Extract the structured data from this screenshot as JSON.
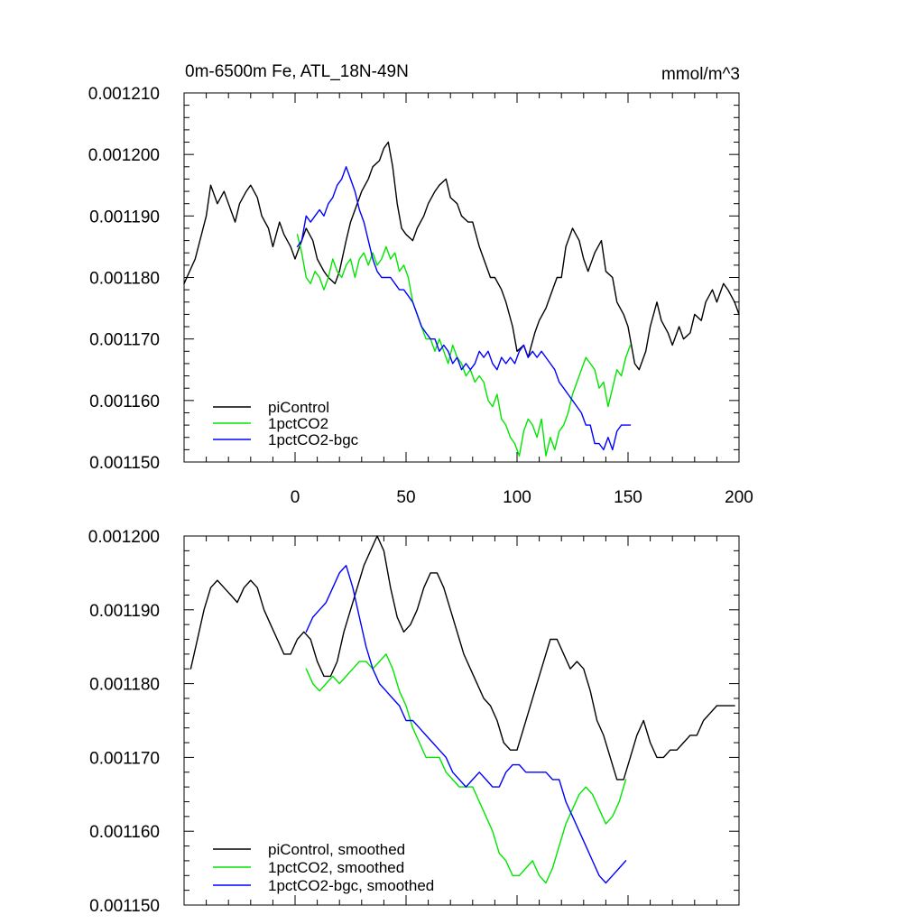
{
  "chart_data": [
    {
      "type": "line",
      "title_left": "0m-6500m Fe, ATL_18N-49N",
      "title_right": "mmol/m^3",
      "xlim": [
        -50,
        200
      ],
      "ylim": [
        0.00115,
        0.00121
      ],
      "x_ticks": [
        0,
        50,
        100,
        150,
        200
      ],
      "x_tick_labels": [
        "0",
        "50",
        "100",
        "150",
        "200"
      ],
      "y_ticks": [
        0.00115,
        0.00116,
        0.00117,
        0.00118,
        0.00119,
        0.0012,
        0.00121
      ],
      "y_tick_labels": [
        "0.001150",
        "0.001160",
        "0.001170",
        "0.001180",
        "0.001190",
        "0.001200",
        "0.001210"
      ],
      "legend_position": "bottom-left",
      "series": [
        {
          "name": "piControl",
          "color": "#000000",
          "x": [
            -50,
            -45,
            -40,
            -38,
            -35,
            -32,
            -30,
            -27,
            -25,
            -22,
            -20,
            -17,
            -15,
            -12,
            -10,
            -7,
            -5,
            -2,
            0,
            3,
            5,
            8,
            10,
            13,
            15,
            18,
            20,
            23,
            25,
            28,
            30,
            33,
            35,
            38,
            40,
            42,
            44,
            46,
            48,
            50,
            53,
            55,
            58,
            60,
            63,
            65,
            68,
            70,
            73,
            75,
            78,
            80,
            83,
            85,
            88,
            90,
            93,
            95,
            98,
            100,
            103,
            105,
            108,
            110,
            113,
            115,
            118,
            120,
            122,
            125,
            128,
            130,
            132,
            135,
            138,
            140,
            143,
            145,
            148,
            150,
            153,
            155,
            158,
            160,
            163,
            165,
            168,
            170,
            173,
            175,
            178,
            180,
            183,
            185,
            188,
            190,
            193,
            195,
            198,
            200
          ],
          "values": [
            0.001179,
            0.001183,
            0.00119,
            0.001195,
            0.001192,
            0.001194,
            0.001192,
            0.001189,
            0.001192,
            0.001194,
            0.001195,
            0.001193,
            0.00119,
            0.001188,
            0.001185,
            0.001189,
            0.001187,
            0.001185,
            0.001183,
            0.001186,
            0.001188,
            0.001186,
            0.001183,
            0.001181,
            0.00118,
            0.001179,
            0.001181,
            0.001186,
            0.001189,
            0.001192,
            0.001194,
            0.001196,
            0.001198,
            0.001199,
            0.001201,
            0.001202,
            0.001198,
            0.001192,
            0.001188,
            0.001187,
            0.001186,
            0.001188,
            0.00119,
            0.001192,
            0.001194,
            0.001195,
            0.001196,
            0.001193,
            0.001192,
            0.00119,
            0.001189,
            0.001189,
            0.001185,
            0.001183,
            0.00118,
            0.00118,
            0.001178,
            0.001176,
            0.001172,
            0.001168,
            0.001169,
            0.001167,
            0.001171,
            0.001173,
            0.001175,
            0.001177,
            0.00118,
            0.00118,
            0.001185,
            0.001188,
            0.001186,
            0.001183,
            0.001181,
            0.001184,
            0.001186,
            0.001181,
            0.00118,
            0.001176,
            0.001174,
            0.001172,
            0.001166,
            0.001165,
            0.001168,
            0.001172,
            0.001176,
            0.001173,
            0.001171,
            0.001169,
            0.001172,
            0.00117,
            0.001171,
            0.001174,
            0.001173,
            0.001176,
            0.001178,
            0.001176,
            0.001179,
            0.001178,
            0.001176,
            0.001174
          ]
        },
        {
          "name": "1pctCO2",
          "color": "#00e600",
          "x": [
            1,
            3,
            5,
            7,
            9,
            11,
            13,
            15,
            17,
            19,
            21,
            23,
            25,
            27,
            29,
            31,
            33,
            35,
            37,
            39,
            41,
            43,
            45,
            47,
            49,
            51,
            53,
            55,
            57,
            59,
            61,
            63,
            65,
            67,
            69,
            71,
            73,
            75,
            77,
            79,
            81,
            83,
            85,
            87,
            89,
            91,
            93,
            95,
            97,
            99,
            101,
            103,
            105,
            107,
            109,
            111,
            113,
            115,
            117,
            119,
            121,
            123,
            125,
            127,
            129,
            131,
            133,
            135,
            137,
            139,
            141,
            143,
            145,
            147,
            149,
            151
          ],
          "values": [
            0.001187,
            0.001184,
            0.00118,
            0.001179,
            0.001181,
            0.00118,
            0.001178,
            0.00118,
            0.001183,
            0.001181,
            0.00118,
            0.001182,
            0.001183,
            0.00118,
            0.001183,
            0.001184,
            0.001182,
            0.001184,
            0.001182,
            0.001183,
            0.001185,
            0.001183,
            0.001184,
            0.001181,
            0.001182,
            0.00118,
            0.001176,
            0.001174,
            0.001172,
            0.00117,
            0.00117,
            0.001168,
            0.00117,
            0.001168,
            0.001166,
            0.001169,
            0.001167,
            0.001166,
            0.001164,
            0.001165,
            0.001163,
            0.001164,
            0.001163,
            0.00116,
            0.001159,
            0.001161,
            0.001157,
            0.001156,
            0.001154,
            0.001153,
            0.001151,
            0.001155,
            0.001157,
            0.001156,
            0.001154,
            0.001157,
            0.001151,
            0.001154,
            0.001152,
            0.001155,
            0.001156,
            0.001158,
            0.001161,
            0.001163,
            0.001165,
            0.001167,
            0.001166,
            0.001165,
            0.001162,
            0.001163,
            0.001159,
            0.001162,
            0.001165,
            0.001164,
            0.001167,
            0.001169
          ]
        },
        {
          "name": "1pctCO2-bgc",
          "color": "#0000ff",
          "x": [
            1,
            3,
            5,
            7,
            9,
            11,
            13,
            15,
            17,
            19,
            21,
            23,
            25,
            27,
            29,
            31,
            33,
            35,
            37,
            39,
            41,
            43,
            45,
            47,
            49,
            51,
            53,
            55,
            57,
            59,
            61,
            63,
            65,
            67,
            69,
            71,
            73,
            75,
            77,
            79,
            81,
            83,
            85,
            87,
            89,
            91,
            93,
            95,
            97,
            99,
            101,
            103,
            105,
            107,
            109,
            111,
            113,
            115,
            117,
            119,
            121,
            123,
            125,
            127,
            129,
            131,
            133,
            135,
            137,
            139,
            141,
            143,
            145,
            147,
            149,
            151
          ],
          "values": [
            0.001185,
            0.001186,
            0.00119,
            0.001189,
            0.00119,
            0.001191,
            0.00119,
            0.001192,
            0.001193,
            0.001195,
            0.001196,
            0.001198,
            0.001196,
            0.001194,
            0.001191,
            0.001189,
            0.001186,
            0.001183,
            0.001181,
            0.00118,
            0.00118,
            0.00118,
            0.001179,
            0.001178,
            0.001178,
            0.001177,
            0.001176,
            0.001174,
            0.001172,
            0.001171,
            0.00117,
            0.00117,
            0.001168,
            0.001169,
            0.001168,
            0.001166,
            0.001167,
            0.001165,
            0.001166,
            0.001165,
            0.001166,
            0.001168,
            0.001167,
            0.001168,
            0.001166,
            0.001165,
            0.001167,
            0.001166,
            0.001167,
            0.001166,
            0.001168,
            0.001169,
            0.001167,
            0.001168,
            0.001167,
            0.001168,
            0.001167,
            0.001166,
            0.001165,
            0.001163,
            0.001162,
            0.001161,
            0.00116,
            0.001159,
            0.001158,
            0.001156,
            0.001156,
            0.001153,
            0.001153,
            0.001152,
            0.001154,
            0.001152,
            0.001155,
            0.001156,
            0.001156,
            0.001156
          ]
        }
      ]
    },
    {
      "type": "line",
      "xlim": [
        -50,
        200
      ],
      "ylim": [
        0.00115,
        0.0012
      ],
      "x_ticks": [
        0,
        50,
        100,
        150,
        200
      ],
      "y_ticks": [
        0.00115,
        0.00116,
        0.00117,
        0.00118,
        0.00119,
        0.0012
      ],
      "y_tick_labels": [
        "0.001150",
        "0.001160",
        "0.001170",
        "0.001180",
        "0.001190",
        "0.001200"
      ],
      "legend_position": "bottom-left",
      "series": [
        {
          "name": "piControl, smoothed",
          "color": "#000000",
          "x": [
            -47,
            -44,
            -41,
            -38,
            -35,
            -32,
            -29,
            -26,
            -23,
            -20,
            -17,
            -14,
            -11,
            -8,
            -5,
            -2,
            1,
            4,
            7,
            10,
            13,
            16,
            19,
            22,
            25,
            28,
            31,
            34,
            37,
            40,
            43,
            46,
            49,
            52,
            55,
            58,
            61,
            64,
            67,
            70,
            73,
            76,
            79,
            82,
            85,
            88,
            91,
            94,
            97,
            100,
            103,
            106,
            109,
            112,
            115,
            118,
            121,
            124,
            127,
            130,
            133,
            136,
            139,
            142,
            145,
            148,
            151,
            154,
            157,
            160,
            163,
            166,
            169,
            172,
            175,
            178,
            181,
            184,
            187,
            190,
            193,
            196,
            198
          ],
          "values": [
            0.001182,
            0.001186,
            0.00119,
            0.001193,
            0.001194,
            0.001193,
            0.001192,
            0.001191,
            0.001193,
            0.001194,
            0.001193,
            0.00119,
            0.001188,
            0.001186,
            0.001184,
            0.001184,
            0.001186,
            0.001187,
            0.001186,
            0.001183,
            0.001181,
            0.001181,
            0.001183,
            0.001187,
            0.00119,
            0.001193,
            0.001196,
            0.001198,
            0.0012,
            0.001198,
            0.001193,
            0.001189,
            0.001187,
            0.001188,
            0.00119,
            0.001193,
            0.001195,
            0.001195,
            0.001193,
            0.00119,
            0.001187,
            0.001184,
            0.001182,
            0.00118,
            0.001178,
            0.001177,
            0.001175,
            0.001172,
            0.001171,
            0.001171,
            0.001174,
            0.001177,
            0.00118,
            0.001183,
            0.001186,
            0.001186,
            0.001184,
            0.001182,
            0.001183,
            0.001182,
            0.001179,
            0.001175,
            0.001173,
            0.00117,
            0.001167,
            0.001167,
            0.00117,
            0.001173,
            0.001175,
            0.001172,
            0.00117,
            0.00117,
            0.001171,
            0.001171,
            0.001172,
            0.001173,
            0.001173,
            0.001175,
            0.001176,
            0.001177,
            0.001177,
            0.001177,
            0.001177
          ]
        },
        {
          "name": "1pctCO2, smoothed",
          "color": "#00e600",
          "x": [
            5,
            8,
            11,
            14,
            17,
            20,
            23,
            26,
            29,
            32,
            35,
            38,
            41,
            44,
            47,
            50,
            53,
            56,
            59,
            62,
            65,
            68,
            71,
            74,
            77,
            80,
            83,
            86,
            89,
            92,
            95,
            98,
            101,
            104,
            107,
            110,
            113,
            116,
            119,
            122,
            125,
            128,
            131,
            134,
            137,
            140,
            143,
            146,
            149
          ],
          "values": [
            0.001182,
            0.00118,
            0.001179,
            0.00118,
            0.001181,
            0.00118,
            0.001181,
            0.001182,
            0.001183,
            0.001183,
            0.001182,
            0.001183,
            0.001184,
            0.001182,
            0.001179,
            0.001177,
            0.001174,
            0.001172,
            0.00117,
            0.00117,
            0.00117,
            0.001168,
            0.001167,
            0.001166,
            0.001166,
            0.001166,
            0.001164,
            0.001162,
            0.00116,
            0.001157,
            0.001156,
            0.001154,
            0.001154,
            0.001155,
            0.001156,
            0.001154,
            0.001153,
            0.001155,
            0.001158,
            0.001161,
            0.001163,
            0.001165,
            0.001166,
            0.001165,
            0.001163,
            0.001161,
            0.001162,
            0.001164,
            0.001167
          ]
        },
        {
          "name": "1pctCO2-bgc, smoothed",
          "color": "#0000ff",
          "x": [
            5,
            8,
            11,
            14,
            17,
            20,
            23,
            26,
            29,
            32,
            35,
            38,
            41,
            44,
            47,
            50,
            53,
            56,
            59,
            62,
            65,
            68,
            71,
            74,
            77,
            80,
            83,
            86,
            89,
            92,
            95,
            98,
            101,
            104,
            107,
            110,
            113,
            116,
            119,
            122,
            125,
            128,
            131,
            134,
            137,
            140,
            143,
            146,
            149
          ],
          "values": [
            0.001187,
            0.001189,
            0.00119,
            0.001191,
            0.001193,
            0.001195,
            0.001196,
            0.001193,
            0.001189,
            0.001185,
            0.001182,
            0.00118,
            0.001179,
            0.001178,
            0.001177,
            0.001175,
            0.001175,
            0.001174,
            0.001173,
            0.001172,
            0.001171,
            0.00117,
            0.001168,
            0.001167,
            0.001166,
            0.001167,
            0.001168,
            0.001167,
            0.001166,
            0.001166,
            0.001168,
            0.001169,
            0.001169,
            0.001168,
            0.001168,
            0.001168,
            0.001168,
            0.001167,
            0.001167,
            0.001164,
            0.001162,
            0.00116,
            0.001158,
            0.001156,
            0.001154,
            0.001153,
            0.001154,
            0.001155,
            0.001156
          ]
        }
      ]
    }
  ]
}
